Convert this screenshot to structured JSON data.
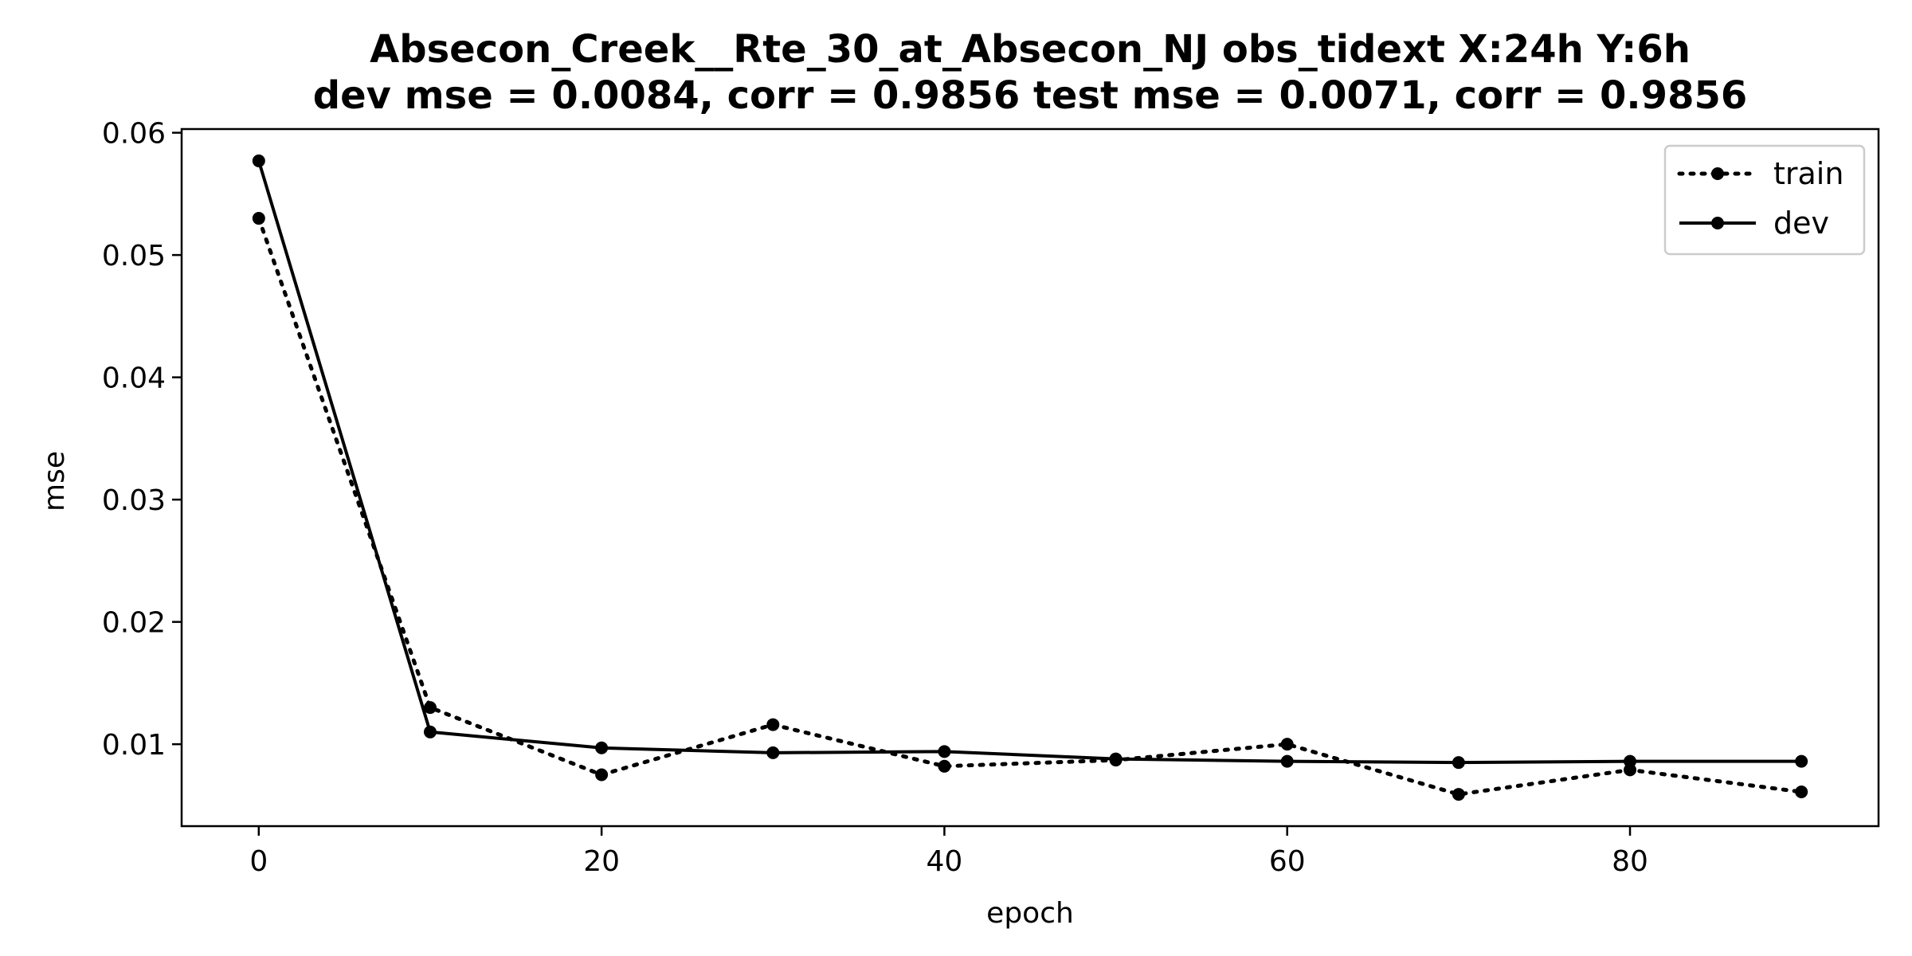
{
  "chart_data": {
    "type": "line",
    "title_line1": "Absecon_Creek__Rte_30_at_Absecon_NJ   obs_tidext   X:24h   Y:6h",
    "title_line2": "dev mse = 0.0084, corr = 0.9856   test mse = 0.0071, corr = 0.9856",
    "xlabel": "epoch",
    "ylabel": "mse",
    "xlim": [
      -4.5,
      94.5
    ],
    "ylim": [
      0.0033,
      0.0603
    ],
    "x_ticks": [
      "0",
      "20",
      "40",
      "60",
      "80"
    ],
    "y_ticks": [
      "0.01",
      "0.02",
      "0.03",
      "0.04",
      "0.05",
      "0.06"
    ],
    "x": [
      0,
      10,
      20,
      30,
      40,
      50,
      60,
      70,
      80,
      90
    ],
    "series": [
      {
        "name": "train",
        "style": "dotted",
        "color": "#000000",
        "values": [
          0.053,
          0.013,
          0.0075,
          0.0116,
          0.0082,
          0.0087,
          0.01,
          0.0059,
          0.0079,
          0.0061
        ]
      },
      {
        "name": "dev",
        "style": "solid",
        "color": "#000000",
        "values": [
          0.0577,
          0.011,
          0.0097,
          0.0093,
          0.0094,
          0.0088,
          0.0086,
          0.0085,
          0.0086,
          0.0086
        ]
      }
    ],
    "legend_position": "top-right",
    "grid": false
  }
}
